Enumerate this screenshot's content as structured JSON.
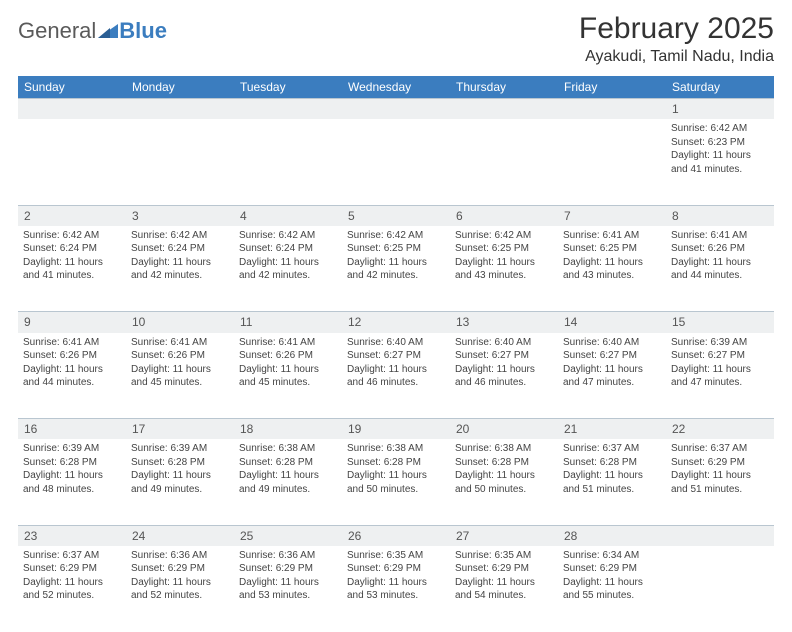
{
  "brand": {
    "part1": "General",
    "part2": "Blue",
    "accent_color": "#3b7dbf"
  },
  "title": "February 2025",
  "location": "Ayakudi, Tamil Nadu, India",
  "colors": {
    "header_bg": "#3b7dbf",
    "header_text": "#ffffff",
    "daynum_bg": "#eef0f1",
    "rule": "#b9c6d0",
    "page_bg": "#ffffff",
    "text": "#444444"
  },
  "typography": {
    "title_fontsize_pt": 22,
    "location_fontsize_pt": 12,
    "header_fontsize_pt": 9,
    "cell_fontsize_pt": 7.5
  },
  "weekdays": [
    "Sunday",
    "Monday",
    "Tuesday",
    "Wednesday",
    "Thursday",
    "Friday",
    "Saturday"
  ],
  "weeks": [
    [
      null,
      null,
      null,
      null,
      null,
      null,
      {
        "d": "1",
        "sr": "Sunrise: 6:42 AM",
        "ss": "Sunset: 6:23 PM",
        "dl1": "Daylight: 11 hours",
        "dl2": "and 41 minutes."
      }
    ],
    [
      {
        "d": "2",
        "sr": "Sunrise: 6:42 AM",
        "ss": "Sunset: 6:24 PM",
        "dl1": "Daylight: 11 hours",
        "dl2": "and 41 minutes."
      },
      {
        "d": "3",
        "sr": "Sunrise: 6:42 AM",
        "ss": "Sunset: 6:24 PM",
        "dl1": "Daylight: 11 hours",
        "dl2": "and 42 minutes."
      },
      {
        "d": "4",
        "sr": "Sunrise: 6:42 AM",
        "ss": "Sunset: 6:24 PM",
        "dl1": "Daylight: 11 hours",
        "dl2": "and 42 minutes."
      },
      {
        "d": "5",
        "sr": "Sunrise: 6:42 AM",
        "ss": "Sunset: 6:25 PM",
        "dl1": "Daylight: 11 hours",
        "dl2": "and 42 minutes."
      },
      {
        "d": "6",
        "sr": "Sunrise: 6:42 AM",
        "ss": "Sunset: 6:25 PM",
        "dl1": "Daylight: 11 hours",
        "dl2": "and 43 minutes."
      },
      {
        "d": "7",
        "sr": "Sunrise: 6:41 AM",
        "ss": "Sunset: 6:25 PM",
        "dl1": "Daylight: 11 hours",
        "dl2": "and 43 minutes."
      },
      {
        "d": "8",
        "sr": "Sunrise: 6:41 AM",
        "ss": "Sunset: 6:26 PM",
        "dl1": "Daylight: 11 hours",
        "dl2": "and 44 minutes."
      }
    ],
    [
      {
        "d": "9",
        "sr": "Sunrise: 6:41 AM",
        "ss": "Sunset: 6:26 PM",
        "dl1": "Daylight: 11 hours",
        "dl2": "and 44 minutes."
      },
      {
        "d": "10",
        "sr": "Sunrise: 6:41 AM",
        "ss": "Sunset: 6:26 PM",
        "dl1": "Daylight: 11 hours",
        "dl2": "and 45 minutes."
      },
      {
        "d": "11",
        "sr": "Sunrise: 6:41 AM",
        "ss": "Sunset: 6:26 PM",
        "dl1": "Daylight: 11 hours",
        "dl2": "and 45 minutes."
      },
      {
        "d": "12",
        "sr": "Sunrise: 6:40 AM",
        "ss": "Sunset: 6:27 PM",
        "dl1": "Daylight: 11 hours",
        "dl2": "and 46 minutes."
      },
      {
        "d": "13",
        "sr": "Sunrise: 6:40 AM",
        "ss": "Sunset: 6:27 PM",
        "dl1": "Daylight: 11 hours",
        "dl2": "and 46 minutes."
      },
      {
        "d": "14",
        "sr": "Sunrise: 6:40 AM",
        "ss": "Sunset: 6:27 PM",
        "dl1": "Daylight: 11 hours",
        "dl2": "and 47 minutes."
      },
      {
        "d": "15",
        "sr": "Sunrise: 6:39 AM",
        "ss": "Sunset: 6:27 PM",
        "dl1": "Daylight: 11 hours",
        "dl2": "and 47 minutes."
      }
    ],
    [
      {
        "d": "16",
        "sr": "Sunrise: 6:39 AM",
        "ss": "Sunset: 6:28 PM",
        "dl1": "Daylight: 11 hours",
        "dl2": "and 48 minutes."
      },
      {
        "d": "17",
        "sr": "Sunrise: 6:39 AM",
        "ss": "Sunset: 6:28 PM",
        "dl1": "Daylight: 11 hours",
        "dl2": "and 49 minutes."
      },
      {
        "d": "18",
        "sr": "Sunrise: 6:38 AM",
        "ss": "Sunset: 6:28 PM",
        "dl1": "Daylight: 11 hours",
        "dl2": "and 49 minutes."
      },
      {
        "d": "19",
        "sr": "Sunrise: 6:38 AM",
        "ss": "Sunset: 6:28 PM",
        "dl1": "Daylight: 11 hours",
        "dl2": "and 50 minutes."
      },
      {
        "d": "20",
        "sr": "Sunrise: 6:38 AM",
        "ss": "Sunset: 6:28 PM",
        "dl1": "Daylight: 11 hours",
        "dl2": "and 50 minutes."
      },
      {
        "d": "21",
        "sr": "Sunrise: 6:37 AM",
        "ss": "Sunset: 6:28 PM",
        "dl1": "Daylight: 11 hours",
        "dl2": "and 51 minutes."
      },
      {
        "d": "22",
        "sr": "Sunrise: 6:37 AM",
        "ss": "Sunset: 6:29 PM",
        "dl1": "Daylight: 11 hours",
        "dl2": "and 51 minutes."
      }
    ],
    [
      {
        "d": "23",
        "sr": "Sunrise: 6:37 AM",
        "ss": "Sunset: 6:29 PM",
        "dl1": "Daylight: 11 hours",
        "dl2": "and 52 minutes."
      },
      {
        "d": "24",
        "sr": "Sunrise: 6:36 AM",
        "ss": "Sunset: 6:29 PM",
        "dl1": "Daylight: 11 hours",
        "dl2": "and 52 minutes."
      },
      {
        "d": "25",
        "sr": "Sunrise: 6:36 AM",
        "ss": "Sunset: 6:29 PM",
        "dl1": "Daylight: 11 hours",
        "dl2": "and 53 minutes."
      },
      {
        "d": "26",
        "sr": "Sunrise: 6:35 AM",
        "ss": "Sunset: 6:29 PM",
        "dl1": "Daylight: 11 hours",
        "dl2": "and 53 minutes."
      },
      {
        "d": "27",
        "sr": "Sunrise: 6:35 AM",
        "ss": "Sunset: 6:29 PM",
        "dl1": "Daylight: 11 hours",
        "dl2": "and 54 minutes."
      },
      {
        "d": "28",
        "sr": "Sunrise: 6:34 AM",
        "ss": "Sunset: 6:29 PM",
        "dl1": "Daylight: 11 hours",
        "dl2": "and 55 minutes."
      },
      null
    ]
  ]
}
